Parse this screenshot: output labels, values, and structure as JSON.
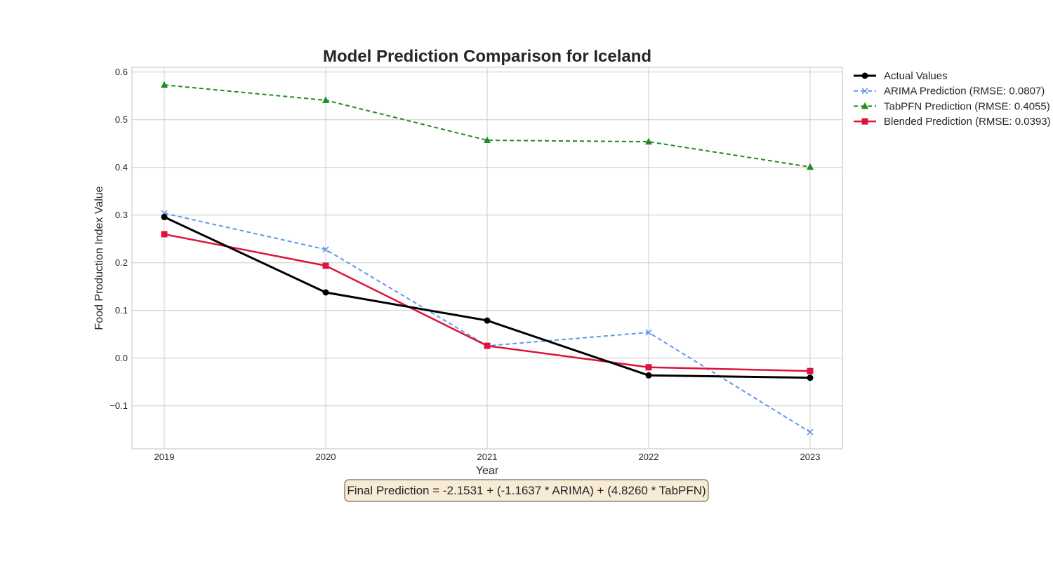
{
  "chart_data": {
    "type": "line",
    "title": "Model Prediction Comparison for Iceland",
    "xlabel": "Year",
    "ylabel": "Food Production Index Value",
    "x": [
      "2019",
      "2020",
      "2021",
      "2022",
      "2023"
    ],
    "xlim": [
      2018.8,
      2023.2
    ],
    "ylim": [
      -0.19,
      0.61
    ],
    "yticks": [
      -0.1,
      0.0,
      0.1,
      0.2,
      0.3,
      0.4,
      0.5,
      0.6
    ],
    "ytick_labels": [
      "−0.1",
      "0.0",
      "0.1",
      "0.2",
      "0.3",
      "0.4",
      "0.5",
      "0.6"
    ],
    "grid": true,
    "legend_position": "outside-top-right",
    "series": [
      {
        "name": "Actual Values",
        "values": [
          0.296,
          0.138,
          0.079,
          -0.036,
          -0.041
        ],
        "color": "#000000",
        "dash": "solid",
        "marker": "circle",
        "width": 3
      },
      {
        "name": "ARIMA Prediction (RMSE: 0.0807)",
        "values": [
          0.304,
          0.228,
          0.026,
          0.054,
          -0.155
        ],
        "color": "#6495ed",
        "dash": "dashed",
        "marker": "x",
        "width": 2
      },
      {
        "name": "TabPFN Prediction (RMSE: 0.4055)",
        "values": [
          0.573,
          0.541,
          0.457,
          0.454,
          0.401
        ],
        "color": "#228b22",
        "dash": "dashed",
        "marker": "triangle",
        "width": 2
      },
      {
        "name": "Blended Prediction (RMSE: 0.0393)",
        "values": [
          0.26,
          0.194,
          0.026,
          -0.019,
          -0.027
        ],
        "color": "#dc143c",
        "dash": "solid",
        "marker": "square",
        "width": 2.5
      }
    ],
    "annotation": "Final Prediction = -2.1531 + (-1.1637 * ARIMA) + (4.8260 * TabPFN)"
  }
}
